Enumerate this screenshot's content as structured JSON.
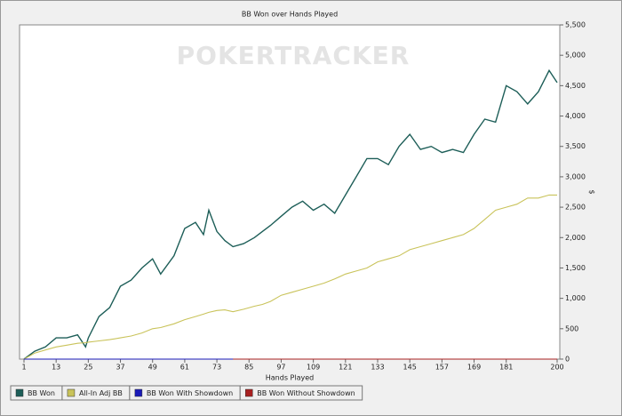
{
  "chart_data": {
    "type": "line",
    "title": "BB Won over Hands Played",
    "watermark": "POKERTRACKER",
    "x_label": "Hands Played",
    "y_label": "$",
    "x": [
      1,
      5,
      9,
      13,
      17,
      21,
      24,
      25,
      29,
      33,
      37,
      41,
      45,
      49,
      52,
      57,
      61,
      65,
      68,
      70,
      73,
      76,
      79,
      83,
      87,
      90,
      93,
      97,
      101,
      105,
      109,
      113,
      117,
      121,
      125,
      129,
      133,
      137,
      141,
      145,
      149,
      153,
      157,
      161,
      165,
      169,
      173,
      177,
      181,
      185,
      189,
      193,
      197,
      200
    ],
    "series": [
      {
        "name": "BB Won",
        "color": "#1d5e58",
        "values": [
          0,
          130,
          200,
          350,
          350,
          400,
          200,
          350,
          700,
          850,
          1200,
          1300,
          1500,
          1650,
          1400,
          1700,
          2150,
          2250,
          2050,
          2450,
          2100,
          1950,
          1850,
          1900,
          2000,
          2100,
          2200,
          2350,
          2500,
          2600,
          2450,
          2550,
          2400,
          2700,
          3000,
          3300,
          3300,
          3200,
          3500,
          3700,
          3450,
          3500,
          3400,
          3450,
          3400,
          3700,
          3950,
          3900,
          4500,
          4400,
          4200,
          4400,
          4750,
          4550
        ]
      },
      {
        "name": "All-In Adj BB",
        "color": "#c9c35a",
        "values": [
          0,
          100,
          150,
          200,
          230,
          260,
          270,
          280,
          300,
          320,
          350,
          380,
          430,
          500,
          520,
          580,
          650,
          700,
          740,
          770,
          800,
          810,
          780,
          820,
          870,
          900,
          950,
          1050,
          1100,
          1150,
          1200,
          1250,
          1320,
          1400,
          1450,
          1500,
          1600,
          1650,
          1700,
          1800,
          1850,
          1900,
          1950,
          2000,
          2050,
          2150,
          2300,
          2450,
          2500,
          2550,
          2650,
          2650,
          2700,
          2700
        ]
      },
      {
        "name": "BB Won With Showdown",
        "color": "#1a1ab8",
        "values": [
          0,
          0,
          0,
          0,
          0,
          0,
          0,
          0,
          0,
          0,
          0,
          0,
          0,
          0,
          0,
          0,
          0,
          0,
          0,
          0,
          0,
          0,
          0,
          0,
          0,
          0,
          0,
          0,
          0,
          0,
          0,
          0,
          0,
          0,
          0,
          0,
          0,
          0,
          0,
          0,
          0,
          0,
          0,
          0,
          0,
          0,
          0,
          0,
          0,
          0,
          0,
          0,
          0,
          0
        ]
      },
      {
        "name": "BB Won Without Showdown",
        "color": "#a82020",
        "values": [
          null,
          null,
          null,
          null,
          null,
          null,
          null,
          null,
          null,
          null,
          null,
          null,
          null,
          null,
          null,
          null,
          null,
          null,
          null,
          null,
          null,
          null,
          0,
          0,
          0,
          0,
          0,
          0,
          0,
          0,
          0,
          0,
          0,
          0,
          0,
          0,
          0,
          0,
          0,
          0,
          0,
          0,
          0,
          0,
          0,
          0,
          0,
          0,
          0,
          0,
          0,
          0,
          0,
          0
        ]
      }
    ],
    "xlim": [
      1,
      200
    ],
    "xticks": [
      1,
      13,
      25,
      37,
      49,
      61,
      73,
      85,
      97,
      109,
      121,
      133,
      145,
      157,
      169,
      181,
      200
    ],
    "ylim": [
      0,
      5500
    ],
    "yticks": [
      0,
      500,
      {
        "value": 1000,
        "label": "1,000"
      },
      {
        "value": 1500,
        "label": "1,500"
      },
      {
        "value": 2000,
        "label": "2,000"
      },
      {
        "value": 2500,
        "label": "2,500"
      },
      {
        "value": 3000,
        "label": "3,000"
      },
      {
        "value": 3500,
        "label": "3,500"
      },
      {
        "value": 4000,
        "label": "4,000"
      },
      {
        "value": 4500,
        "label": "4,500"
      },
      {
        "value": 5000,
        "label": "5,000"
      },
      {
        "value": 5500,
        "label": "5,500"
      }
    ],
    "legend_position": "bottom"
  }
}
